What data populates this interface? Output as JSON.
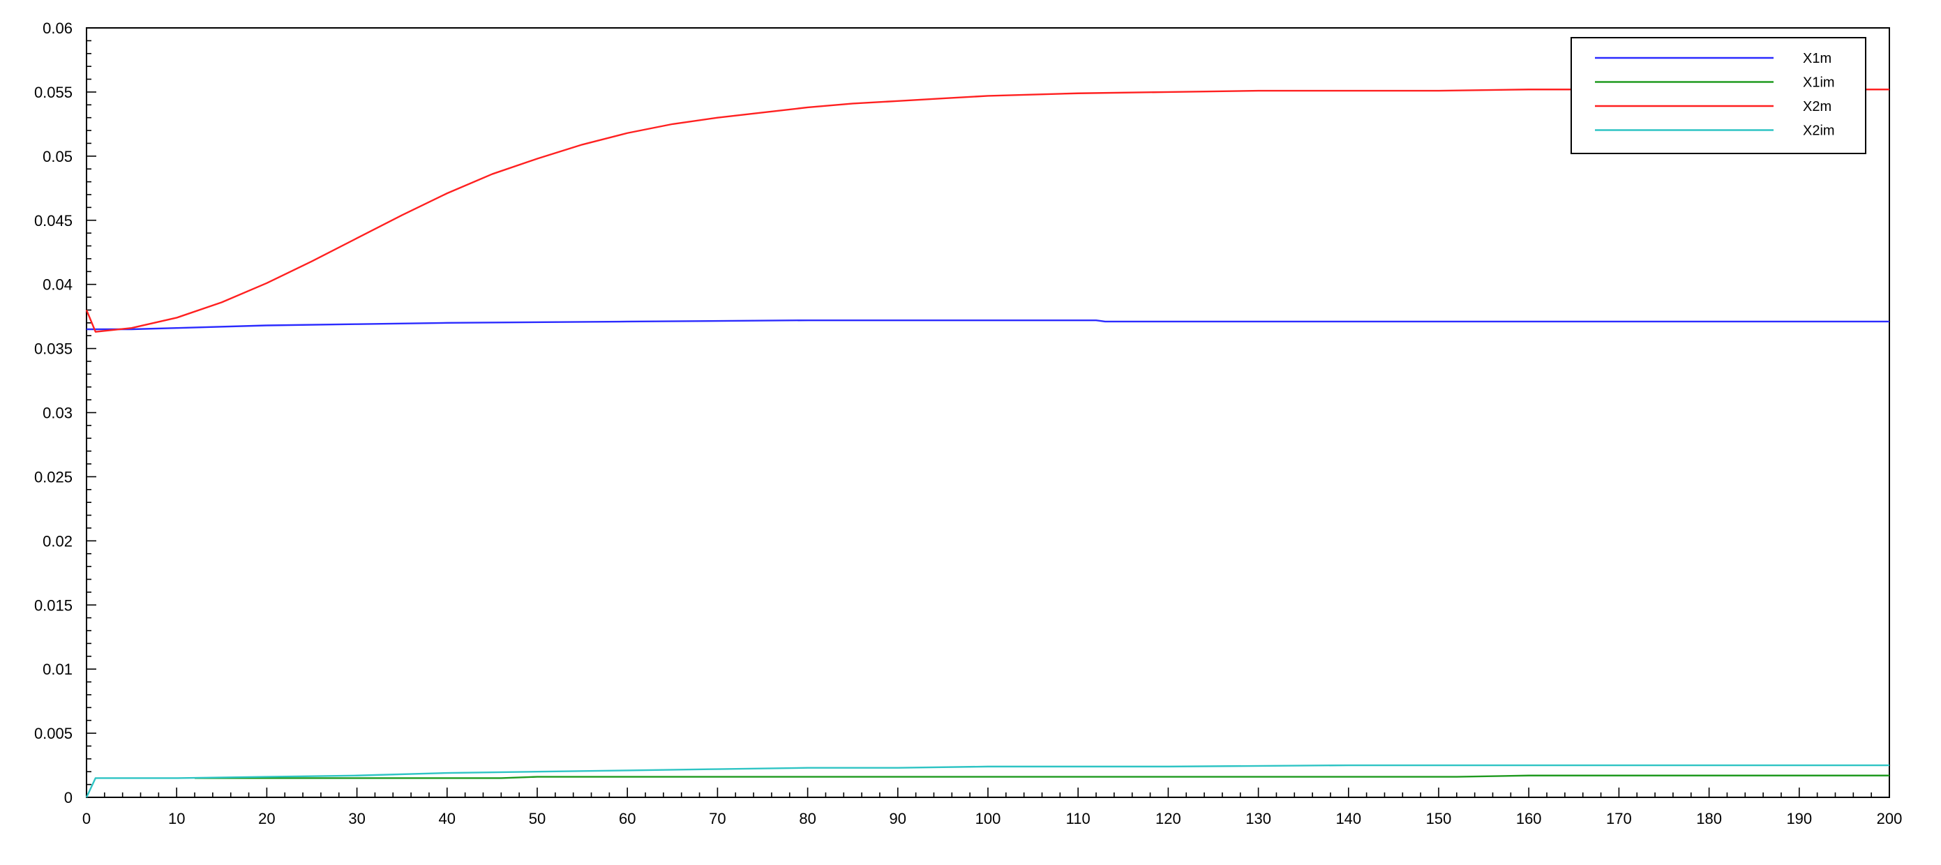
{
  "chart_data": {
    "type": "line",
    "title": "",
    "xlabel": "",
    "ylabel": "",
    "xlim": [
      0,
      200
    ],
    "ylim": [
      0,
      0.06
    ],
    "x_ticks": [
      "0",
      "10",
      "20",
      "30",
      "40",
      "50",
      "60",
      "70",
      "80",
      "90",
      "100",
      "110",
      "120",
      "130",
      "140",
      "150",
      "160",
      "170",
      "180",
      "190",
      "200"
    ],
    "y_ticks": [
      "0",
      "0.005",
      "0.01",
      "0.015",
      "0.02",
      "0.025",
      "0.03",
      "0.035",
      "0.04",
      "0.045",
      "0.05",
      "0.055",
      "0.06"
    ],
    "grid": false,
    "legend_position": "top-right",
    "series": [
      {
        "name": "X1m",
        "color": "#2b2bff",
        "x": [
          0,
          1,
          5,
          10,
          20,
          30,
          40,
          60,
          80,
          100,
          112,
          113,
          130,
          150,
          170,
          200
        ],
        "y": [
          0.0365,
          0.0365,
          0.0365,
          0.0366,
          0.0368,
          0.0369,
          0.037,
          0.0371,
          0.0372,
          0.0372,
          0.0372,
          0.0371,
          0.0371,
          0.0371,
          0.0371,
          0.0371
        ]
      },
      {
        "name": "X1im",
        "color": "#1f9a1f",
        "x": [
          12,
          20,
          30,
          40,
          46,
          50,
          60,
          80,
          100,
          120,
          140,
          152,
          160,
          180,
          200
        ],
        "y": [
          0.0015,
          0.0015,
          0.0015,
          0.0015,
          0.0015,
          0.0016,
          0.0016,
          0.0016,
          0.0016,
          0.0016,
          0.0016,
          0.0016,
          0.0017,
          0.0017,
          0.0017
        ]
      },
      {
        "name": "X2m",
        "color": "#ff2020",
        "x": [
          0,
          1,
          5,
          10,
          15,
          20,
          25,
          30,
          35,
          40,
          45,
          50,
          55,
          60,
          65,
          70,
          75,
          80,
          85,
          90,
          95,
          100,
          110,
          120,
          130,
          140,
          150,
          160,
          170,
          180,
          190,
          200
        ],
        "y": [
          0.038,
          0.0363,
          0.0366,
          0.0374,
          0.0386,
          0.0401,
          0.0418,
          0.0436,
          0.0454,
          0.0471,
          0.0486,
          0.0498,
          0.0509,
          0.0518,
          0.0525,
          0.053,
          0.0534,
          0.0538,
          0.0541,
          0.0543,
          0.0545,
          0.0547,
          0.0549,
          0.055,
          0.0551,
          0.0551,
          0.0551,
          0.0552,
          0.0552,
          0.0552,
          0.0552,
          0.0552
        ]
      },
      {
        "name": "X2im",
        "color": "#2ec4c4",
        "x": [
          0,
          1,
          10,
          20,
          30,
          40,
          50,
          60,
          70,
          80,
          90,
          100,
          120,
          140,
          160,
          180,
          200
        ],
        "y": [
          0,
          0.0015,
          0.0015,
          0.0016,
          0.0017,
          0.0019,
          0.002,
          0.0021,
          0.0022,
          0.0023,
          0.0023,
          0.0024,
          0.0024,
          0.0025,
          0.0025,
          0.0025,
          0.0025
        ]
      }
    ]
  }
}
